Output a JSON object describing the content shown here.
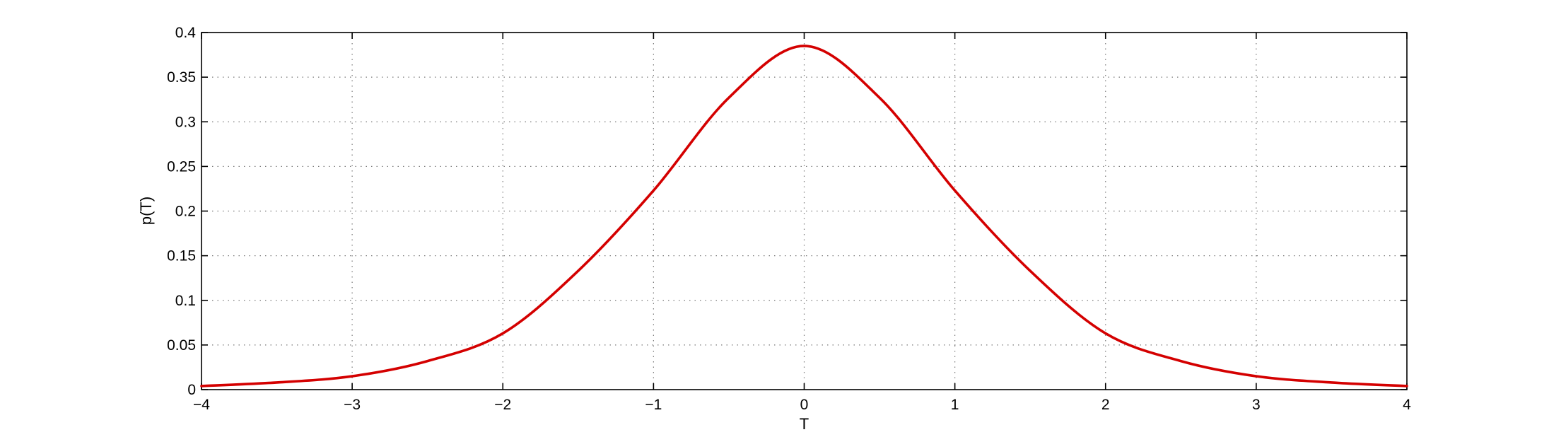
{
  "chart_data": {
    "type": "line",
    "title": "",
    "xlabel": "T",
    "ylabel": "p(T)",
    "xlim": [
      -4,
      4
    ],
    "ylim": [
      0,
      0.4
    ],
    "grid": true,
    "x_ticks": [
      -4,
      -3,
      -2,
      -1,
      0,
      1,
      2,
      3,
      4
    ],
    "x_tick_labels": [
      "−4",
      "−3",
      "−2",
      "−1",
      "0",
      "1",
      "2",
      "3",
      "4"
    ],
    "y_ticks": [
      0,
      0.05,
      0.1,
      0.15,
      0.2,
      0.25,
      0.3,
      0.35,
      0.4
    ],
    "y_tick_labels": [
      "0",
      "0.05",
      "0.1",
      "0.15",
      "0.2",
      "0.25",
      "0.3",
      "0.35",
      "0.4"
    ],
    "series": [
      {
        "color": "#d40000",
        "x": [
          -4.0,
          -3.5,
          -3.0,
          -2.5,
          -2.0,
          -1.5,
          -1.0,
          -0.5,
          0.0,
          0.5,
          1.0,
          1.5,
          2.0,
          2.5,
          3.0,
          3.5,
          4.0
        ],
        "y": [
          0.004,
          0.008,
          0.015,
          0.032,
          0.063,
          0.133,
          0.223,
          0.327,
          0.385,
          0.327,
          0.223,
          0.133,
          0.063,
          0.032,
          0.015,
          0.008,
          0.004
        ]
      }
    ]
  }
}
